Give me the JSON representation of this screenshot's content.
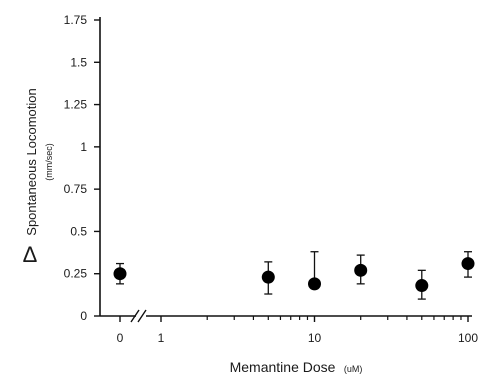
{
  "chart_data": {
    "type": "scatter",
    "title": "",
    "xlabel": "Memantine Dose",
    "xlabel_unit": "(uM)",
    "ylabel_symbol": "Δ",
    "ylabel": "Spontaneous Locomotion",
    "ylabel_unit": "(mm/sec)",
    "x_scale": "log with axis break",
    "xlim": [
      1,
      100
    ],
    "ylim": [
      0,
      1.75
    ],
    "x_tick_labels": [
      "0",
      "1",
      "10",
      "100"
    ],
    "y_ticks": [
      0,
      0.25,
      0.5,
      0.75,
      1,
      1.25,
      1.5,
      1.75
    ],
    "y_tick_labels": [
      "0",
      "0.25",
      "0.5",
      "0.75",
      "1",
      "1.25",
      "1.5",
      "1.75"
    ],
    "grid": false,
    "points": [
      {
        "x": 0,
        "y": 0.25,
        "err_up": 0.06,
        "err_down": 0.06
      },
      {
        "x": 5,
        "y": 0.23,
        "err_up": 0.09,
        "err_down": 0.1
      },
      {
        "x": 10,
        "y": 0.19,
        "err_up": 0.19,
        "err_down": 0
      },
      {
        "x": 20,
        "y": 0.27,
        "err_up": 0.09,
        "err_down": 0.08
      },
      {
        "x": 50,
        "y": 0.18,
        "err_up": 0.09,
        "err_down": 0.08
      },
      {
        "x": 100,
        "y": 0.31,
        "err_up": 0.07,
        "err_down": 0.08
      }
    ],
    "marker_color": "#000000"
  }
}
